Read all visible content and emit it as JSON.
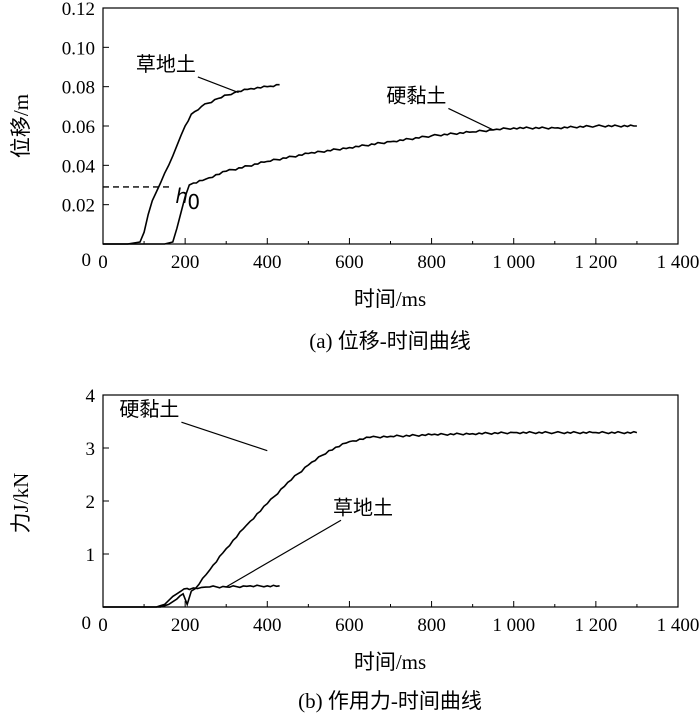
{
  "chart_data": [
    {
      "type": "line",
      "caption": "(a) 位移-时间曲线",
      "xlabel": "时间/ms",
      "ylabel": "位移/m",
      "xlim": [
        0,
        1400
      ],
      "ylim": [
        0,
        0.12
      ],
      "xticks": [
        0,
        200,
        400,
        600,
        800,
        1000,
        1200,
        1400
      ],
      "xtick_labels": [
        "0",
        "200",
        "400",
        "600",
        "800",
        "1 000",
        "1 200",
        "1 400"
      ],
      "yticks": [
        0.02,
        0.04,
        0.06,
        0.08,
        0.1,
        0.12
      ],
      "ytick_labels": [
        "0.02",
        "0.04",
        "0.06",
        "0.08",
        "0.10",
        "0.12"
      ],
      "grid": false,
      "series": [
        {
          "name": "草地土",
          "x": [
            0,
            60,
            90,
            100,
            110,
            120,
            140,
            160,
            180,
            200,
            215,
            240,
            280,
            320,
            360,
            400,
            430
          ],
          "y": [
            0,
            0,
            0.001,
            0.006,
            0.015,
            0.022,
            0.031,
            0.04,
            0.05,
            0.06,
            0.066,
            0.07,
            0.074,
            0.077,
            0.079,
            0.08,
            0.081
          ]
        },
        {
          "name": "硬黏土",
          "x": [
            0,
            150,
            170,
            180,
            190,
            200,
            210,
            220,
            250,
            300,
            400,
            500,
            600,
            700,
            800,
            900,
            950,
            1000,
            1100,
            1200,
            1300
          ],
          "y": [
            0,
            0,
            0.001,
            0.008,
            0.016,
            0.024,
            0.03,
            0.031,
            0.033,
            0.037,
            0.042,
            0.046,
            0.049,
            0.052,
            0.055,
            0.057,
            0.058,
            0.059,
            0.059,
            0.06,
            0.06
          ]
        }
      ],
      "annotations": [
        {
          "text": "草地土",
          "x": 80,
          "y": 0.088,
          "target_x": 330,
          "target_y": 0.077
        },
        {
          "text": "硬黏土",
          "x": 690,
          "y": 0.072,
          "target_x": 950,
          "target_y": 0.058
        }
      ],
      "reference_line": {
        "label": "h",
        "subscript": "0",
        "y": 0.029,
        "x_start": 0,
        "x_end": 310
      }
    },
    {
      "type": "line",
      "caption": "(b) 作用力-时间曲线",
      "xlabel": "时间/ms",
      "ylabel": "力J/kN",
      "xlim": [
        0,
        1400
      ],
      "ylim": [
        0,
        4
      ],
      "xticks": [
        0,
        200,
        400,
        600,
        800,
        1000,
        1200,
        1400
      ],
      "xtick_labels": [
        "0",
        "200",
        "400",
        "600",
        "800",
        "1 000",
        "1 200",
        "1 400"
      ],
      "yticks": [
        1,
        2,
        3,
        4
      ],
      "ytick_labels": [
        "1",
        "2",
        "3",
        "4"
      ],
      "grid": false,
      "series": [
        {
          "name": "硬黏土",
          "x": [
            0,
            140,
            160,
            180,
            195,
            205,
            215,
            225,
            260,
            300,
            350,
            400,
            450,
            500,
            550,
            600,
            650,
            700,
            800,
            900,
            1000,
            1100,
            1200,
            1300
          ],
          "y": [
            0,
            0,
            0.05,
            0.15,
            0.25,
            0.05,
            0.3,
            0.35,
            0.7,
            1.1,
            1.55,
            1.95,
            2.35,
            2.68,
            2.95,
            3.12,
            3.2,
            3.22,
            3.25,
            3.27,
            3.29,
            3.29,
            3.29,
            3.29
          ]
        },
        {
          "name": "草地土",
          "x": [
            0,
            130,
            150,
            170,
            190,
            205,
            210,
            220,
            240,
            260,
            300,
            350,
            400,
            430
          ],
          "y": [
            0,
            0,
            0.05,
            0.2,
            0.3,
            0.35,
            0.33,
            0.36,
            0.37,
            0.38,
            0.38,
            0.39,
            0.4,
            0.4
          ]
        }
      ],
      "annotations": [
        {
          "text": "硬黏土",
          "x": 40,
          "y": 3.6,
          "target_x": 400,
          "target_y": 2.95
        },
        {
          "text": "草地土",
          "x": 560,
          "y": 1.75,
          "target_x": 300,
          "target_y": 0.38
        }
      ]
    }
  ]
}
